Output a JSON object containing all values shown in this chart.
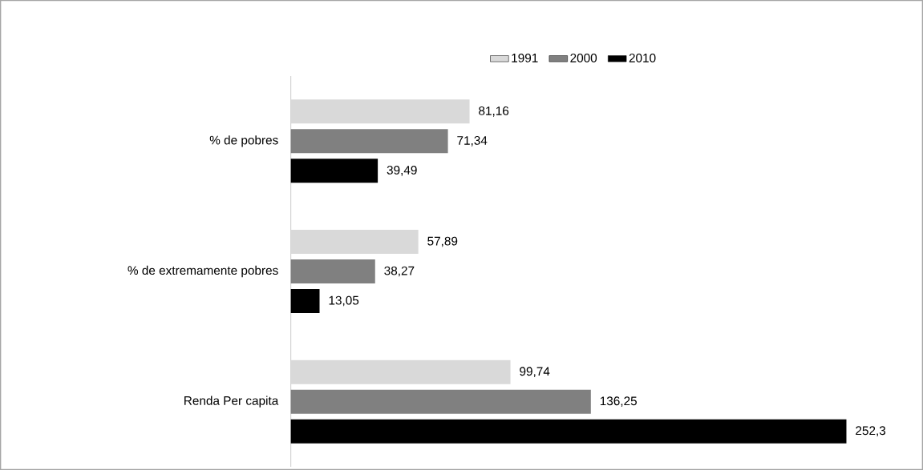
{
  "chart_data": {
    "type": "bar",
    "orientation": "horizontal",
    "categories": [
      "% de pobres",
      "% de extremamente pobres",
      "Renda Per capita"
    ],
    "series": [
      {
        "name": "1991",
        "color": "#d9d9d9",
        "values": [
          81.16,
          57.89,
          99.74
        ],
        "value_labels": [
          "81,16",
          "57,89",
          "99,74"
        ]
      },
      {
        "name": "2000",
        "color": "#808080",
        "values": [
          71.34,
          38.27,
          136.25
        ],
        "value_labels": [
          "71,34",
          "38,27",
          "136,25"
        ]
      },
      {
        "name": "2010",
        "color": "#000000",
        "values": [
          39.49,
          13.05,
          252.3
        ],
        "value_labels": [
          "39,49",
          "13,05",
          "252,3"
        ]
      }
    ],
    "legend": "top"
  }
}
